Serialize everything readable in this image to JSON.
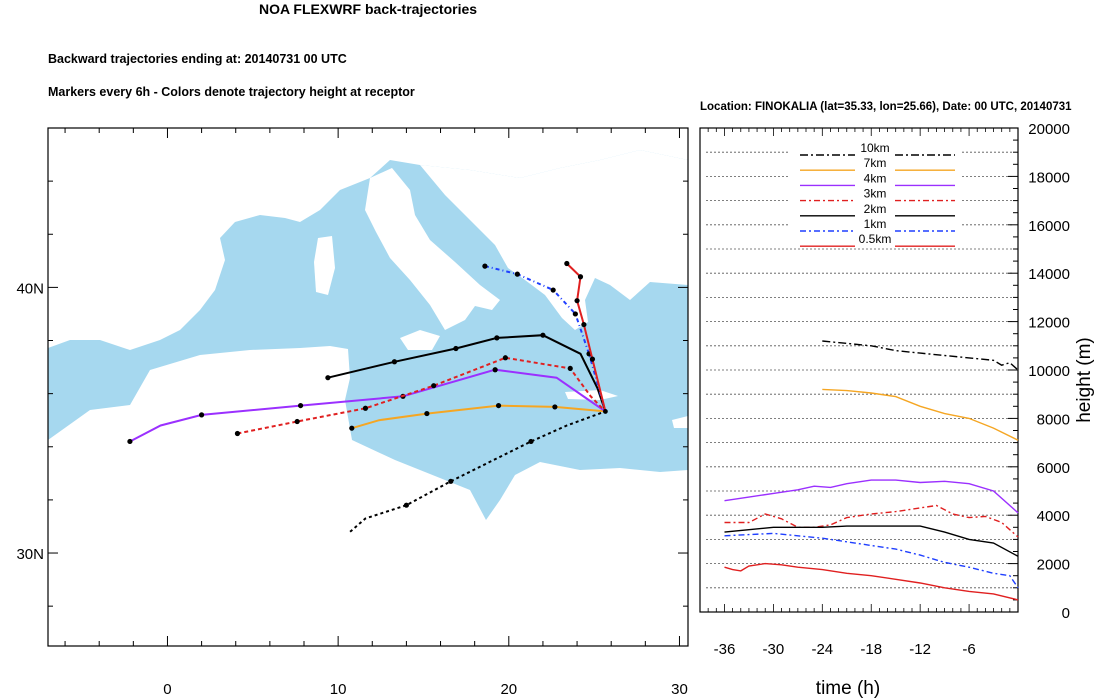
{
  "chart_data": [
    {
      "type": "line",
      "title": "NOA FLEXWRF back-trajectories",
      "subtitle": "Backward trajectories ending at: 20140731  00 UTC",
      "subtitle2": "Markers every 6h - Colors denote trajectory height at receptor",
      "xlabel": "",
      "ylabel": "",
      "xlim": [
        -7,
        30.5
      ],
      "ylim": [
        26.5,
        46
      ],
      "x_ticks": [
        0,
        10,
        20,
        30
      ],
      "x_tick_labels": [
        "0",
        "10",
        "20",
        "30"
      ],
      "y_ticks": [
        30,
        40
      ],
      "y_tick_labels": [
        "30N",
        "40N"
      ],
      "receptor": {
        "lon": 25.66,
        "lat": 35.33
      },
      "land_color": "#ffffff",
      "sea_color": "#a6d8ef",
      "series": [
        {
          "name": "10km",
          "color": "#000000",
          "dash": "3,3",
          "lon": [
            10.7,
            11.6,
            14.0,
            16.6,
            19.1,
            21.3,
            23.4,
            25.66
          ],
          "lat": [
            30.8,
            31.3,
            31.8,
            32.7,
            33.5,
            34.2,
            34.8,
            35.33
          ],
          "marker_lon": [
            14.0,
            16.6,
            21.3
          ],
          "marker_lat": [
            31.8,
            32.7,
            34.2
          ]
        },
        {
          "name": "7km",
          "color": "#f5a623",
          "dash": "",
          "lon": [
            10.8,
            12.4,
            15.2,
            19.4,
            22.7,
            25.66
          ],
          "lat": [
            34.7,
            35.0,
            35.25,
            35.55,
            35.5,
            35.33
          ],
          "marker_lon": [
            10.8,
            15.2,
            19.4,
            22.7
          ],
          "marker_lat": [
            34.7,
            35.25,
            35.55,
            35.5
          ]
        },
        {
          "name": "4km",
          "color": "#9b30ff",
          "dash": "",
          "lon": [
            -2.2,
            -0.4,
            2.0,
            7.8,
            13.8,
            19.2,
            22.8,
            24.6,
            25.66
          ],
          "lat": [
            34.2,
            34.8,
            35.2,
            35.55,
            35.9,
            36.9,
            36.6,
            35.8,
            35.33
          ],
          "marker_lon": [
            -2.2,
            2.0,
            7.8,
            13.8,
            19.2
          ],
          "marker_lat": [
            34.2,
            35.2,
            35.55,
            35.9,
            36.9
          ]
        },
        {
          "name": "3km",
          "color": "#e02020",
          "dash": "4,3",
          "lon": [
            4.1,
            7.6,
            11.6,
            15.6,
            19.8,
            23.6,
            24.8,
            25.66
          ],
          "lat": [
            34.5,
            34.95,
            35.45,
            36.3,
            37.35,
            36.95,
            35.9,
            35.33
          ],
          "marker_lon": [
            4.1,
            7.6,
            11.6,
            15.6,
            19.8,
            23.6
          ],
          "marker_lat": [
            34.5,
            34.95,
            35.45,
            36.3,
            37.35,
            36.95
          ]
        },
        {
          "name": "2km",
          "color": "#000000",
          "dash": "",
          "lon": [
            9.4,
            13.3,
            16.9,
            19.3,
            22.0,
            24.2,
            25.2,
            25.66
          ],
          "lat": [
            36.6,
            37.2,
            37.7,
            38.1,
            38.2,
            37.5,
            36.2,
            35.33
          ],
          "marker_lon": [
            9.4,
            13.3,
            16.9,
            19.3,
            22.0
          ],
          "marker_lat": [
            36.6,
            37.2,
            37.7,
            38.1,
            38.2
          ]
        },
        {
          "name": "1km",
          "color": "#1f3fff",
          "dash": "4,3,1,3",
          "lon": [
            18.6,
            20.5,
            22.6,
            23.9,
            24.7,
            25.66
          ],
          "lat": [
            40.8,
            40.5,
            39.9,
            39.0,
            37.5,
            35.33
          ],
          "marker_lon": [
            18.6,
            20.5,
            22.6,
            23.9,
            24.7
          ],
          "marker_lat": [
            40.8,
            40.5,
            39.9,
            39.0,
            37.5
          ]
        },
        {
          "name": "0.5km",
          "color": "#e02020",
          "dash": "",
          "lon": [
            23.4,
            24.2,
            24.0,
            24.4,
            24.9,
            25.66
          ],
          "lat": [
            40.9,
            40.4,
            39.5,
            38.6,
            37.3,
            35.33
          ],
          "marker_lon": [
            23.4,
            24.2,
            24.0,
            24.4,
            24.9
          ],
          "marker_lat": [
            40.9,
            40.4,
            39.5,
            38.6,
            37.3
          ]
        }
      ]
    },
    {
      "type": "line",
      "title": "Location: FINOKALIA (lat=35.33,  lon=25.66), Date: 00 UTC, 20140731",
      "xlabel": "time (h)",
      "ylabel": "height (m)",
      "xlim": [
        -39,
        0
      ],
      "ylim": [
        0,
        20000
      ],
      "x_ticks": [
        -36,
        -30,
        -24,
        -18,
        -12,
        -6
      ],
      "x_tick_labels": [
        "-36",
        "-30",
        "-24",
        "-18",
        "-12",
        "-6"
      ],
      "y_ticks": [
        0,
        2000,
        4000,
        6000,
        8000,
        10000,
        12000,
        14000,
        16000,
        18000,
        20000
      ],
      "y_tick_labels": [
        "0",
        "2000",
        "4000",
        "6000",
        "8000",
        "10000",
        "12000",
        "14000",
        "16000",
        "18000",
        "20000"
      ],
      "grid": true,
      "legend_position": "top-center",
      "series": [
        {
          "name": "10km",
          "color": "#000000",
          "dash": "8,3,2,3",
          "x": [
            -24,
            -21,
            -18,
            -15,
            -12,
            -9,
            -6,
            -3,
            -2,
            -1,
            0
          ],
          "y": [
            11200,
            11100,
            11000,
            10800,
            10700,
            10600,
            10500,
            10400,
            10200,
            10300,
            10000
          ]
        },
        {
          "name": "7km",
          "color": "#f5a623",
          "dash": "",
          "x": [
            -24,
            -21,
            -18,
            -15,
            -12,
            -9,
            -6,
            -3,
            0
          ],
          "y": [
            9200,
            9150,
            9050,
            8900,
            8500,
            8200,
            8000,
            7600,
            7100
          ]
        },
        {
          "name": "4km",
          "color": "#9b30ff",
          "dash": "",
          "x": [
            -36,
            -33,
            -30,
            -27,
            -25,
            -23,
            -21,
            -18,
            -15,
            -12,
            -9,
            -6,
            -3,
            0
          ],
          "y": [
            4600,
            4750,
            4900,
            5050,
            5200,
            5150,
            5300,
            5450,
            5450,
            5350,
            5400,
            5300,
            5000,
            4100
          ]
        },
        {
          "name": "3km",
          "color": "#e02020",
          "dash": "6,3,2,3",
          "x": [
            -36,
            -33,
            -31,
            -29,
            -27,
            -25,
            -23,
            -21,
            -18,
            -15,
            -12,
            -10,
            -8,
            -6,
            -4,
            -2,
            0
          ],
          "y": [
            3700,
            3700,
            4050,
            3850,
            3500,
            3500,
            3600,
            3900,
            4050,
            4150,
            4300,
            4400,
            4050,
            3900,
            3950,
            3700,
            3100
          ]
        },
        {
          "name": "2km",
          "color": "#000000",
          "dash": "",
          "x": [
            -36,
            -33,
            -30,
            -27,
            -24,
            -21,
            -18,
            -15,
            -12,
            -9,
            -6,
            -3,
            0
          ],
          "y": [
            3300,
            3400,
            3500,
            3500,
            3500,
            3550,
            3550,
            3550,
            3550,
            3300,
            3000,
            2850,
            2300
          ]
        },
        {
          "name": "1km",
          "color": "#1f3fff",
          "dash": "6,3,2,3",
          "x": [
            -36,
            -33,
            -30,
            -27,
            -24,
            -21,
            -18,
            -15,
            -12,
            -9,
            -6,
            -3,
            -1,
            0
          ],
          "y": [
            3150,
            3200,
            3250,
            3150,
            3050,
            2900,
            2750,
            2600,
            2350,
            2050,
            1850,
            1600,
            1500,
            1000
          ]
        },
        {
          "name": "0.5km",
          "color": "#e02020",
          "dash": "",
          "x": [
            -36,
            -35,
            -34,
            -33,
            -31,
            -29,
            -27,
            -24,
            -21,
            -18,
            -15,
            -12,
            -9,
            -6,
            -3,
            0
          ],
          "y": [
            1850,
            1750,
            1700,
            1900,
            2000,
            1950,
            1850,
            1750,
            1600,
            1500,
            1350,
            1200,
            1000,
            850,
            750,
            500
          ]
        }
      ]
    }
  ]
}
